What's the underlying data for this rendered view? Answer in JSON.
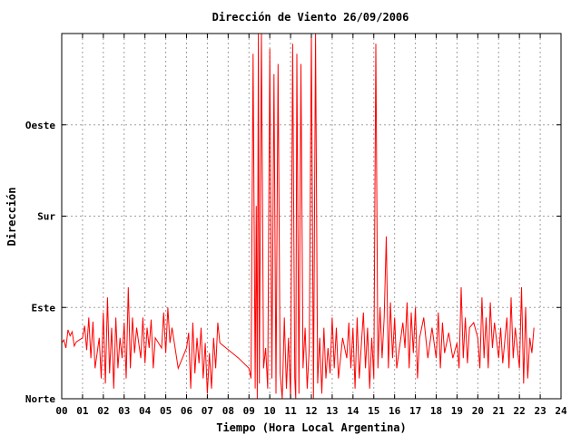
{
  "chart_data": {
    "type": "line",
    "title": "Dirección de Viento 26/09/2006",
    "xlabel": "Tiempo (Hora Local Argentina)",
    "ylabel": "Dirección",
    "xlim": [
      0,
      24
    ],
    "ylim": [
      0,
      360
    ],
    "x_ticks": [
      "00",
      "01",
      "02",
      "03",
      "04",
      "05",
      "06",
      "07",
      "08",
      "09",
      "10",
      "11",
      "12",
      "13",
      "14",
      "15",
      "16",
      "17",
      "18",
      "19",
      "20",
      "21",
      "22",
      "23",
      "24"
    ],
    "y_ticks": [
      {
        "value": 0,
        "label": "Norte"
      },
      {
        "value": 90,
        "label": "Este"
      },
      {
        "value": 180,
        "label": "Sur"
      },
      {
        "value": 270,
        "label": "Oeste"
      }
    ],
    "grid": true,
    "color": "#ff0000",
    "series": [
      {
        "points": [
          [
            0.0,
            55
          ],
          [
            0.1,
            58
          ],
          [
            0.2,
            50
          ],
          [
            0.3,
            68
          ],
          [
            0.4,
            62
          ],
          [
            0.5,
            66
          ],
          [
            0.6,
            52
          ],
          [
            0.7,
            56
          ],
          [
            1.0,
            60
          ],
          [
            1.1,
            72
          ],
          [
            1.2,
            48
          ],
          [
            1.3,
            80
          ],
          [
            1.4,
            40
          ],
          [
            1.5,
            76
          ],
          [
            1.6,
            30
          ],
          [
            1.8,
            60
          ],
          [
            1.9,
            20
          ],
          [
            2.0,
            85
          ],
          [
            2.1,
            15
          ],
          [
            2.2,
            100
          ],
          [
            2.3,
            25
          ],
          [
            2.4,
            70
          ],
          [
            2.5,
            10
          ],
          [
            2.6,
            80
          ],
          [
            2.7,
            30
          ],
          [
            2.8,
            60
          ],
          [
            2.9,
            40
          ],
          [
            3.0,
            75
          ],
          [
            3.1,
            20
          ],
          [
            3.2,
            110
          ],
          [
            3.3,
            30
          ],
          [
            3.4,
            80
          ],
          [
            3.5,
            45
          ],
          [
            3.6,
            70
          ],
          [
            3.8,
            40
          ],
          [
            3.9,
            80
          ],
          [
            4.0,
            35
          ],
          [
            4.1,
            70
          ],
          [
            4.2,
            50
          ],
          [
            4.3,
            78
          ],
          [
            4.4,
            30
          ],
          [
            4.5,
            60
          ],
          [
            4.8,
            50
          ],
          [
            4.9,
            85
          ],
          [
            5.0,
            45
          ],
          [
            5.1,
            90
          ],
          [
            5.2,
            55
          ],
          [
            5.3,
            70
          ],
          [
            5.6,
            30
          ],
          [
            5.8,
            40
          ],
          [
            6.0,
            50
          ],
          [
            6.1,
            65
          ],
          [
            6.2,
            10
          ],
          [
            6.3,
            75
          ],
          [
            6.4,
            25
          ],
          [
            6.5,
            60
          ],
          [
            6.6,
            35
          ],
          [
            6.7,
            70
          ],
          [
            6.8,
            20
          ],
          [
            6.9,
            55
          ],
          [
            7.0,
            5
          ],
          [
            7.1,
            45
          ],
          [
            7.2,
            10
          ],
          [
            7.3,
            60
          ],
          [
            7.4,
            30
          ],
          [
            7.5,
            75
          ],
          [
            7.6,
            55
          ],
          [
            8.5,
            40
          ],
          [
            9.0,
            30
          ],
          [
            9.1,
            20
          ],
          [
            9.2,
            340
          ],
          [
            9.3,
            10
          ],
          [
            9.35,
            190
          ],
          [
            9.4,
            0
          ],
          [
            9.45,
            360
          ],
          [
            9.5,
            15
          ],
          [
            9.6,
            360
          ],
          [
            9.7,
            30
          ],
          [
            9.8,
            50
          ],
          [
            9.9,
            10
          ],
          [
            10.0,
            345
          ],
          [
            10.1,
            20
          ],
          [
            10.2,
            320
          ],
          [
            10.3,
            5
          ],
          [
            10.4,
            330
          ],
          [
            10.5,
            25
          ],
          [
            10.6,
            0
          ],
          [
            10.7,
            80
          ],
          [
            10.8,
            10
          ],
          [
            10.9,
            60
          ],
          [
            11.0,
            0
          ],
          [
            11.1,
            350
          ],
          [
            11.2,
            20
          ],
          [
            11.25,
            0
          ],
          [
            11.3,
            340
          ],
          [
            11.4,
            5
          ],
          [
            11.5,
            330
          ],
          [
            11.6,
            30
          ],
          [
            11.7,
            70
          ],
          [
            11.8,
            10
          ],
          [
            11.9,
            50
          ],
          [
            12.0,
            360
          ],
          [
            12.1,
            0
          ],
          [
            12.2,
            360
          ],
          [
            12.3,
            15
          ],
          [
            12.4,
            60
          ],
          [
            12.5,
            5
          ],
          [
            12.6,
            70
          ],
          [
            12.7,
            20
          ],
          [
            12.8,
            50
          ],
          [
            12.9,
            25
          ],
          [
            13.0,
            80
          ],
          [
            13.1,
            30
          ],
          [
            13.2,
            70
          ],
          [
            13.3,
            20
          ],
          [
            13.5,
            60
          ],
          [
            13.7,
            40
          ],
          [
            13.8,
            75
          ],
          [
            13.9,
            30
          ],
          [
            14.0,
            70
          ],
          [
            14.1,
            10
          ],
          [
            14.2,
            80
          ],
          [
            14.3,
            20
          ],
          [
            14.5,
            85
          ],
          [
            14.6,
            30
          ],
          [
            14.7,
            70
          ],
          [
            14.8,
            10
          ],
          [
            14.9,
            60
          ],
          [
            15.0,
            20
          ],
          [
            15.1,
            350
          ],
          [
            15.2,
            30
          ],
          [
            15.3,
            90
          ],
          [
            15.4,
            40
          ],
          [
            15.5,
            80
          ],
          [
            15.6,
            160
          ],
          [
            15.7,
            30
          ],
          [
            15.8,
            95
          ],
          [
            15.9,
            40
          ],
          [
            16.0,
            80
          ],
          [
            16.1,
            30
          ],
          [
            16.4,
            75
          ],
          [
            16.5,
            50
          ],
          [
            16.6,
            95
          ],
          [
            16.7,
            30
          ],
          [
            16.8,
            85
          ],
          [
            16.9,
            45
          ],
          [
            17.0,
            90
          ],
          [
            17.1,
            20
          ],
          [
            17.2,
            60
          ],
          [
            17.4,
            80
          ],
          [
            17.6,
            40
          ],
          [
            17.8,
            70
          ],
          [
            18.0,
            40
          ],
          [
            18.1,
            85
          ],
          [
            18.2,
            30
          ],
          [
            18.3,
            75
          ],
          [
            18.4,
            45
          ],
          [
            18.6,
            65
          ],
          [
            18.8,
            40
          ],
          [
            19.0,
            55
          ],
          [
            19.1,
            30
          ],
          [
            19.2,
            110
          ],
          [
            19.3,
            40
          ],
          [
            19.4,
            80
          ],
          [
            19.5,
            35
          ],
          [
            19.6,
            70
          ],
          [
            19.8,
            75
          ],
          [
            20.0,
            60
          ],
          [
            20.1,
            30
          ],
          [
            20.2,
            100
          ],
          [
            20.3,
            40
          ],
          [
            20.4,
            80
          ],
          [
            20.5,
            30
          ],
          [
            20.6,
            95
          ],
          [
            20.7,
            50
          ],
          [
            20.8,
            75
          ],
          [
            21.0,
            40
          ],
          [
            21.1,
            70
          ],
          [
            21.2,
            35
          ],
          [
            21.4,
            80
          ],
          [
            21.5,
            30
          ],
          [
            21.6,
            100
          ],
          [
            21.7,
            40
          ],
          [
            21.8,
            70
          ],
          [
            22.0,
            30
          ],
          [
            22.1,
            110
          ],
          [
            22.2,
            15
          ],
          [
            22.3,
            90
          ],
          [
            22.4,
            20
          ],
          [
            22.5,
            60
          ],
          [
            22.6,
            45
          ],
          [
            22.7,
            70
          ]
        ]
      }
    ]
  }
}
